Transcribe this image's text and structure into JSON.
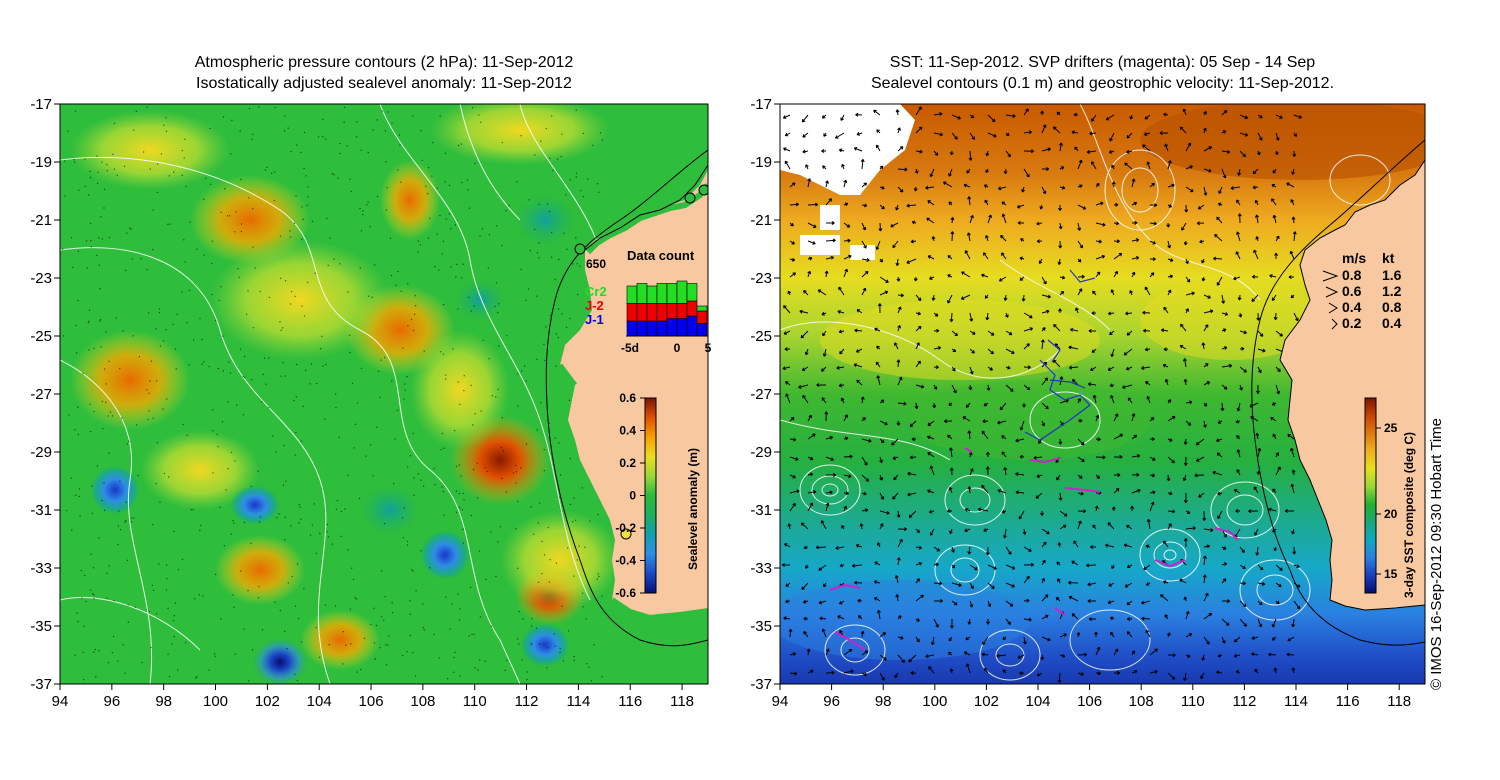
{
  "left_panel": {
    "title_line1": "Atmospheric pressure contours (2 hPa): 11-Sep-2012",
    "title_line2": "Isostatically adjusted sealevel anomaly: 11-Sep-2012",
    "y_ticks": [
      "-17",
      "-19",
      "-21",
      "-23",
      "-25",
      "-27",
      "-29",
      "-31",
      "-33",
      "-35",
      "-37"
    ],
    "x_ticks": [
      "94",
      "96",
      "98",
      "100",
      "102",
      "104",
      "106",
      "108",
      "110",
      "112",
      "114",
      "116",
      "118"
    ],
    "station_label": "650",
    "data_count": {
      "title": "Data count",
      "legend": [
        {
          "label": "Cr2",
          "color": "#22dd22"
        },
        {
          "label": "J-2",
          "color": "#ee0000"
        },
        {
          "label": "J-1",
          "color": "#0000ee"
        }
      ],
      "x_ticks": [
        "-5d",
        "0",
        "5"
      ],
      "bars": [
        {
          "j1": 0.3,
          "j2": 0.35,
          "cr2": 0.35
        },
        {
          "j1": 0.3,
          "j2": 0.35,
          "cr2": 0.4
        },
        {
          "j1": 0.3,
          "j2": 0.35,
          "cr2": 0.35
        },
        {
          "j1": 0.3,
          "j2": 0.35,
          "cr2": 0.4
        },
        {
          "j1": 0.35,
          "j2": 0.3,
          "cr2": 0.4
        },
        {
          "j1": 0.35,
          "j2": 0.3,
          "cr2": 0.45
        },
        {
          "j1": 0.4,
          "j2": 0.3,
          "cr2": 0.35
        },
        {
          "j1": 0.25,
          "j2": 0.25,
          "cr2": 0.1
        }
      ]
    },
    "colorbar": {
      "label": "Sealevel anomaly (m)",
      "ticks": [
        "0.6",
        "0.4",
        "0.2",
        "0",
        "-0.2",
        "-0.4",
        "-0.6"
      ],
      "colors": [
        "#7a1500",
        "#e05000",
        "#f6a000",
        "#eddc20",
        "#9ad83a",
        "#2bbb3a",
        "#1cb060",
        "#10a0b0",
        "#2f8de6",
        "#1a48c8",
        "#04107a"
      ]
    }
  },
  "right_panel": {
    "title_line1": "SST: 11-Sep-2012. SVP drifters (magenta): 05 Sep - 14 Sep",
    "title_line2": "Sealevel contours (0.1 m) and geostrophic velocity: 11-Sep-2012.",
    "y_ticks": [
      "-17",
      "-19",
      "-21",
      "-23",
      "-25",
      "-27",
      "-29",
      "-31",
      "-33",
      "-35",
      "-37"
    ],
    "x_ticks": [
      "94",
      "96",
      "98",
      "100",
      "102",
      "104",
      "106",
      "108",
      "110",
      "112",
      "114",
      "116",
      "118"
    ],
    "velocity_legend": {
      "header_ms": "m/s",
      "header_kt": "kt",
      "rows": [
        {
          "ms": "0.8",
          "kt": "1.6"
        },
        {
          "ms": "0.6",
          "kt": "1.2"
        },
        {
          "ms": "0.4",
          "kt": "0.8"
        },
        {
          "ms": "0.2",
          "kt": "0.4"
        }
      ]
    },
    "colorbar": {
      "label": "3-day SST composite (deg C)",
      "ticks": [
        "25",
        "20",
        "15"
      ],
      "colors": [
        "#7a1500",
        "#c84400",
        "#e07a10",
        "#f0b020",
        "#e4e020",
        "#98d838",
        "#20b030",
        "#19a878",
        "#10a8c0",
        "#2a80e0",
        "#1a40c0",
        "#060a70"
      ]
    },
    "credit": "© IMOS 16-Sep-2012 09:30 Hobart Time"
  },
  "colors": {
    "land": "#f8c8a0",
    "ocean_green": "#2fbd3c",
    "sst_orange": "#d47010"
  }
}
